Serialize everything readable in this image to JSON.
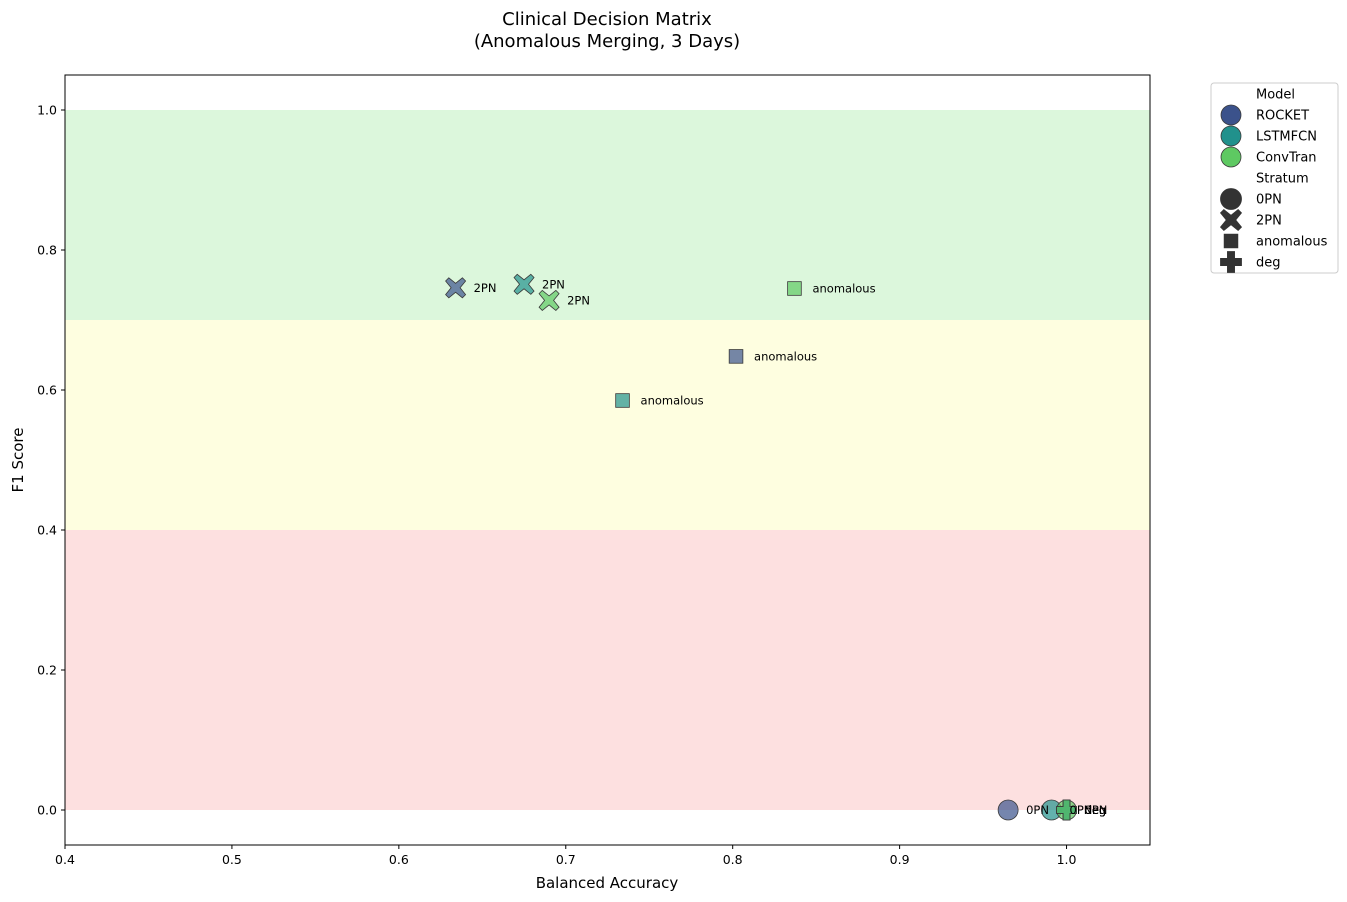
{
  "chart_data": {
    "type": "scatter",
    "title_line1": "Clinical Decision Matrix",
    "title_line2": "(Anomalous Merging, 3 Days)",
    "xlabel": "Balanced Accuracy",
    "ylabel": "F1 Score",
    "xlim": [
      0.4,
      1.05
    ],
    "ylim": [
      -0.05,
      1.05
    ],
    "xticks": [
      0.4,
      0.5,
      0.6,
      0.7,
      0.8,
      0.9,
      1.0
    ],
    "xtick_labels": [
      "0.4",
      "0.5",
      "0.6",
      "0.7",
      "0.8",
      "0.9",
      "1.0"
    ],
    "yticks": [
      0.0,
      0.2,
      0.4,
      0.6,
      0.8,
      1.0
    ],
    "ytick_labels": [
      "0.0",
      "0.2",
      "0.4",
      "0.6",
      "0.8",
      "1.0"
    ],
    "grid": false,
    "bands": [
      {
        "y0": 0.7,
        "y1": 1.0,
        "color": "#dcf7dc"
      },
      {
        "y0": 0.4,
        "y1": 0.7,
        "color": "#fefee0"
      },
      {
        "y0": 0.0,
        "y1": 0.4,
        "color": "#fde0e0"
      }
    ],
    "models": [
      {
        "name": "ROCKET",
        "color": "#3b528b"
      },
      {
        "name": "LSTMFCN",
        "color": "#21918c"
      },
      {
        "name": "ConvTran",
        "color": "#5ec962"
      }
    ],
    "points": [
      {
        "model": "ROCKET",
        "stratum": "2PN",
        "x": 0.634,
        "y": 0.746,
        "label": "2PN"
      },
      {
        "model": "LSTMFCN",
        "stratum": "2PN",
        "x": 0.675,
        "y": 0.751,
        "label": "2PN"
      },
      {
        "model": "ConvTran",
        "stratum": "2PN",
        "x": 0.69,
        "y": 0.728,
        "label": "2PN"
      },
      {
        "model": "ConvTran",
        "stratum": "anomalous",
        "x": 0.837,
        "y": 0.745,
        "label": "anomalous"
      },
      {
        "model": "ROCKET",
        "stratum": "anomalous",
        "x": 0.802,
        "y": 0.648,
        "label": "anomalous"
      },
      {
        "model": "LSTMFCN",
        "stratum": "anomalous",
        "x": 0.734,
        "y": 0.585,
        "label": "anomalous"
      },
      {
        "model": "ROCKET",
        "stratum": "0PN",
        "x": 0.965,
        "y": 0.0,
        "label": "0PN"
      },
      {
        "model": "LSTMFCN",
        "stratum": "0PN",
        "x": 0.991,
        "y": 0.0,
        "label": "0PN"
      },
      {
        "model": "ConvTran",
        "stratum": "0PN",
        "x": 1.0,
        "y": 0.0,
        "label": "0PN"
      },
      {
        "model": "ROCKET",
        "stratum": "deg",
        "x": 1.0,
        "y": 0.0,
        "label": "deg"
      },
      {
        "model": "LSTMFCN",
        "stratum": "deg",
        "x": 1.0,
        "y": 0.0,
        "label": "deg"
      },
      {
        "model": "ConvTran",
        "stratum": "deg",
        "x": 1.0,
        "y": 0.0,
        "label": "deg"
      }
    ],
    "legend": {
      "placement": "outside-top-right",
      "model_header": "Model",
      "stratum_header": "Stratum",
      "strata": [
        {
          "name": "0PN",
          "marker": "circle"
        },
        {
          "name": "2PN",
          "marker": "x"
        },
        {
          "name": "anomalous",
          "marker": "square"
        },
        {
          "name": "deg",
          "marker": "plus"
        }
      ]
    }
  }
}
